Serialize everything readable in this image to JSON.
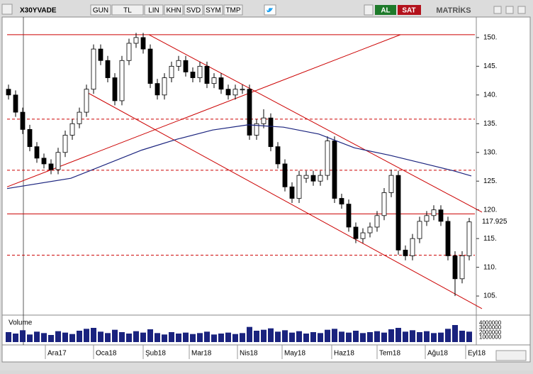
{
  "toolbar": {
    "symbol": "X30YVADE",
    "buttons": [
      "GUN",
      "TL",
      "LIN",
      "KHN",
      "SVD",
      "SYM",
      "TMP"
    ],
    "buy": "AL",
    "sell": "SAT",
    "brand": "MATRİKS"
  },
  "chart_data": {
    "type": "candlestick",
    "ohlc": [
      [
        141,
        141.8,
        139.2,
        140
      ],
      [
        140,
        140.8,
        136.2,
        137
      ],
      [
        137,
        137.8,
        133.2,
        134
      ],
      [
        134,
        134.8,
        130.2,
        131
      ],
      [
        131,
        131.8,
        128.2,
        129
      ],
      [
        129,
        129.8,
        127.2,
        128
      ],
      [
        128,
        128.8,
        126.2,
        127
      ],
      [
        127,
        130.8,
        126.2,
        130
      ],
      [
        130,
        133.8,
        129.2,
        133
      ],
      [
        133,
        135.8,
        132.2,
        135
      ],
      [
        135,
        137.8,
        134.2,
        137
      ],
      [
        137,
        141.8,
        136.2,
        141
      ],
      [
        141,
        148.8,
        140.2,
        148
      ],
      [
        148,
        148.8,
        145.2,
        146
      ],
      [
        146,
        146.8,
        142.2,
        143
      ],
      [
        143,
        143.8,
        138.2,
        139
      ],
      [
        139,
        146.8,
        138.2,
        146
      ],
      [
        146,
        149.8,
        145.2,
        149
      ],
      [
        149,
        150.8,
        148.2,
        150
      ],
      [
        150,
        150.8,
        147.2,
        148
      ],
      [
        148,
        148.8,
        141.2,
        142
      ],
      [
        142,
        142.8,
        139.2,
        140
      ],
      [
        140,
        143.8,
        139.2,
        143
      ],
      [
        143,
        145.8,
        142.2,
        145
      ],
      [
        145,
        146.8,
        144.2,
        146
      ],
      [
        146,
        146.8,
        143.2,
        144
      ],
      [
        144,
        144.8,
        142.2,
        143
      ],
      [
        143,
        145.8,
        142.2,
        145
      ],
      [
        145,
        145.8,
        141.2,
        142
      ],
      [
        142,
        143.8,
        141.2,
        143
      ],
      [
        143,
        143.8,
        140.2,
        141
      ],
      [
        141,
        141.8,
        139.2,
        140
      ],
      [
        140,
        141.8,
        139.2,
        141
      ],
      [
        141,
        141.8,
        140.2,
        141
      ],
      [
        141,
        141.8,
        132.2,
        133
      ],
      [
        133,
        135.8,
        132.2,
        135
      ],
      [
        135,
        137.5,
        134.2,
        136
      ],
      [
        136,
        136.8,
        130.2,
        131
      ],
      [
        131,
        131.8,
        127.2,
        128
      ],
      [
        128,
        128.8,
        123.2,
        124
      ],
      [
        124,
        124.8,
        121.2,
        122
      ],
      [
        122,
        126.8,
        121.2,
        126
      ],
      [
        125.5,
        126.8,
        124.7,
        126
      ],
      [
        126,
        126.8,
        124.2,
        125
      ],
      [
        125,
        126.8,
        124.2,
        126
      ],
      [
        126,
        132.8,
        125.2,
        132
      ],
      [
        132,
        132.8,
        121.2,
        122
      ],
      [
        122,
        122.8,
        120.2,
        121
      ],
      [
        121,
        121.8,
        116.2,
        117
      ],
      [
        117,
        117.8,
        114.2,
        115
      ],
      [
        115,
        116.8,
        114.2,
        116
      ],
      [
        116,
        117.8,
        115.2,
        117
      ],
      [
        117,
        119.8,
        116.2,
        119
      ],
      [
        119,
        123.8,
        118.2,
        123
      ],
      [
        123,
        127,
        122.2,
        126
      ],
      [
        126,
        126.8,
        112.2,
        113
      ],
      [
        113,
        113.8,
        111.2,
        112
      ],
      [
        112,
        115.8,
        111.2,
        115
      ],
      [
        115,
        118.8,
        114.2,
        118
      ],
      [
        118,
        119.8,
        117.2,
        119
      ],
      [
        119,
        120.8,
        118.2,
        120
      ],
      [
        120,
        120.8,
        117.2,
        118
      ],
      [
        118,
        118.8,
        111.2,
        112
      ],
      [
        112,
        112.8,
        105,
        108
      ],
      [
        108,
        112.8,
        107.2,
        112
      ],
      [
        112,
        118.6,
        111.2,
        117.9
      ]
    ],
    "volume": [
      2100000,
      1800000,
      2500000,
      1600000,
      2200000,
      1900000,
      1500000,
      2300000,
      2000000,
      1700000,
      2400000,
      2800000,
      3000000,
      2200000,
      1900000,
      2600000,
      2100000,
      1800000,
      2300000,
      2000000,
      2700000,
      1900000,
      1600000,
      2100000,
      1800000,
      2000000,
      1700000,
      1900000,
      2200000,
      1600000,
      1800000,
      2000000,
      1700000,
      1900000,
      3200000,
      2400000,
      2600000,
      2900000,
      2200000,
      2500000,
      2000000,
      2300000,
      1800000,
      2100000,
      1900000,
      2600000,
      2800000,
      2200000,
      2000000,
      2400000,
      1900000,
      2100000,
      2300000,
      2000000,
      2700000,
      3000000,
      2200000,
      2500000,
      2100000,
      2300000,
      1900000,
      2000000,
      2800000,
      3600000,
      2400000,
      2200000
    ],
    "ma_x": [
      -0.2,
      8.8,
      18.8,
      23.8,
      28.8,
      33.8,
      38.8,
      43.8,
      48.8,
      53.8,
      58.8,
      62.8,
      65.3
    ],
    "ma_values": [
      123.7,
      125.5,
      130.4,
      132.3,
      133.9,
      134.8,
      134.4,
      133.2,
      130.8,
      129.5,
      128,
      126.8,
      125.9
    ],
    "ma_color": "#1a237e",
    "trendlines": [
      {
        "x": [
          -0.2,
          55.3
        ],
        "y": [
          124,
          150.5
        ]
      },
      {
        "x": [
          19.8,
          66.8
        ],
        "y": [
          150.5,
          119.6
        ]
      },
      {
        "x": [
          11.3,
          66.8
        ],
        "y": [
          140.3,
          102.8
        ]
      }
    ],
    "hlines": [
      {
        "value": 150.5,
        "dashed": false
      },
      {
        "value": 135.8,
        "dashed": true
      },
      {
        "value": 126.9,
        "dashed": true
      },
      {
        "value": 119.3,
        "dashed": false
      },
      {
        "value": 112.1,
        "dashed": true
      }
    ],
    "line_color": "#cc0000",
    "last_price": {
      "value": 117.925,
      "label": "117.925"
    },
    "xlim": [
      -0.2,
      65.8
    ],
    "ylim": [
      102.17,
      153.57
    ],
    "yticks": [
      {
        "value": 105,
        "label": "105."
      },
      {
        "value": 110,
        "label": "110."
      },
      {
        "value": 115,
        "label": "115."
      },
      {
        "value": 120,
        "label": "120."
      },
      {
        "value": 125,
        "label": "125."
      },
      {
        "value": 130,
        "label": "130."
      },
      {
        "value": 135,
        "label": "135."
      },
      {
        "value": 140,
        "label": "140."
      },
      {
        "value": 145,
        "label": "145."
      },
      {
        "value": 150,
        "label": "150."
      }
    ],
    "xticks": [
      {
        "value": 5.2,
        "label": "Ara17"
      },
      {
        "value": 12,
        "label": "Oca18"
      },
      {
        "value": 19,
        "label": "Şub18"
      },
      {
        "value": 25.5,
        "label": "Mar18"
      },
      {
        "value": 32.3,
        "label": "Nis18"
      },
      {
        "value": 38.6,
        "label": "May18"
      },
      {
        "value": 45.6,
        "label": "Haz18"
      },
      {
        "value": 52,
        "label": "Tem18"
      },
      {
        "value": 58.8,
        "label": "Ağu18"
      },
      {
        "value": 64.5,
        "label": "Eyl18"
      }
    ],
    "volume_label": "Volume",
    "vlim": [
      0,
      4500000
    ],
    "vticks": [
      1000000,
      2000000,
      3000000,
      4000000
    ]
  }
}
